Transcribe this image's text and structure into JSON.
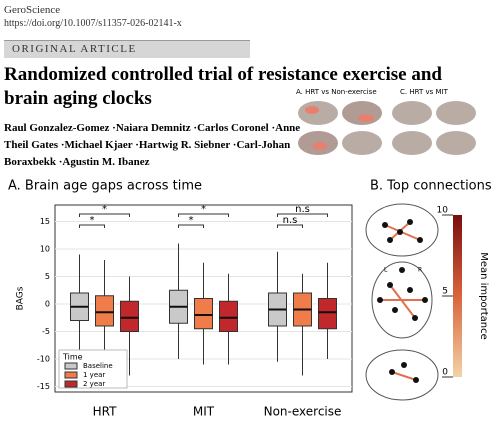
{
  "journal": "GeroScience",
  "doi": "https://doi.org/10.1007/s11357-026-02141-x",
  "article_type": "ORIGINAL ARTICLE",
  "title": "Randomized controlled trial of resistance exercise and brain aging clocks",
  "authors": [
    "Raul Gonzalez-Gomez",
    "Naiara Demnitz",
    "Carlos Coronel",
    "Anne Theil Gates",
    "Michael Kjaer",
    "Hartwig R. Siebner",
    "Carl-Johan Boraxbekk",
    "Agustin M. Ibanez"
  ],
  "brain_panels": [
    "A. HRT vs Non-exercise",
    "C. HRT vs MIT"
  ],
  "chart_data": {
    "type": "box",
    "title": "A. Brain age gaps across time",
    "y_label": "BAGs",
    "categories": [
      "HRT",
      "MIT",
      "Non-exercise"
    ],
    "legend_title": "Time",
    "series": [
      {
        "name": "Baseline",
        "color": "#c9c9c9",
        "boxes": [
          {
            "min": -11,
            "q1": -3,
            "median": -0.5,
            "q3": 2,
            "max": 9
          },
          {
            "min": -10,
            "q1": -3.5,
            "median": -0.5,
            "q3": 2.5,
            "max": 11
          },
          {
            "min": -10.5,
            "q1": -4,
            "median": -1,
            "q3": 2,
            "max": 9.5
          }
        ]
      },
      {
        "name": "1 year",
        "color": "#f07c4a",
        "boxes": [
          {
            "min": -12,
            "q1": -4,
            "median": -1.5,
            "q3": 1.5,
            "max": 8
          },
          {
            "min": -11,
            "q1": -4.5,
            "median": -2,
            "q3": 1,
            "max": 7.5
          },
          {
            "min": -13,
            "q1": -4,
            "median": -1,
            "q3": 2,
            "max": 5.5
          }
        ]
      },
      {
        "name": "2 year",
        "color": "#c0282b",
        "boxes": [
          {
            "min": -13,
            "q1": -5,
            "median": -2.5,
            "q3": 0.5,
            "max": 5
          },
          {
            "min": -11,
            "q1": -5,
            "median": -2.5,
            "q3": 0.5,
            "max": 5.5
          },
          {
            "min": -10,
            "q1": -4.5,
            "median": -1.5,
            "q3": 1,
            "max": 7.5
          }
        ]
      }
    ],
    "significance": [
      [
        "*",
        "*"
      ],
      [
        "*",
        "*"
      ],
      [
        "n.s",
        "n.s"
      ]
    ],
    "ylim": [
      -16,
      18
    ],
    "yticks": [
      -15,
      -10,
      -5,
      0,
      5,
      10,
      15
    ],
    "grid": true
  },
  "connectivity": {
    "title": "B. Top connections",
    "hemisphere_labels": [
      "L",
      "R"
    ],
    "colorbar_label": "Mean importance",
    "colorbar_lim": [
      0,
      10
    ],
    "colorbar_ticks": [
      0,
      5,
      10
    ]
  }
}
